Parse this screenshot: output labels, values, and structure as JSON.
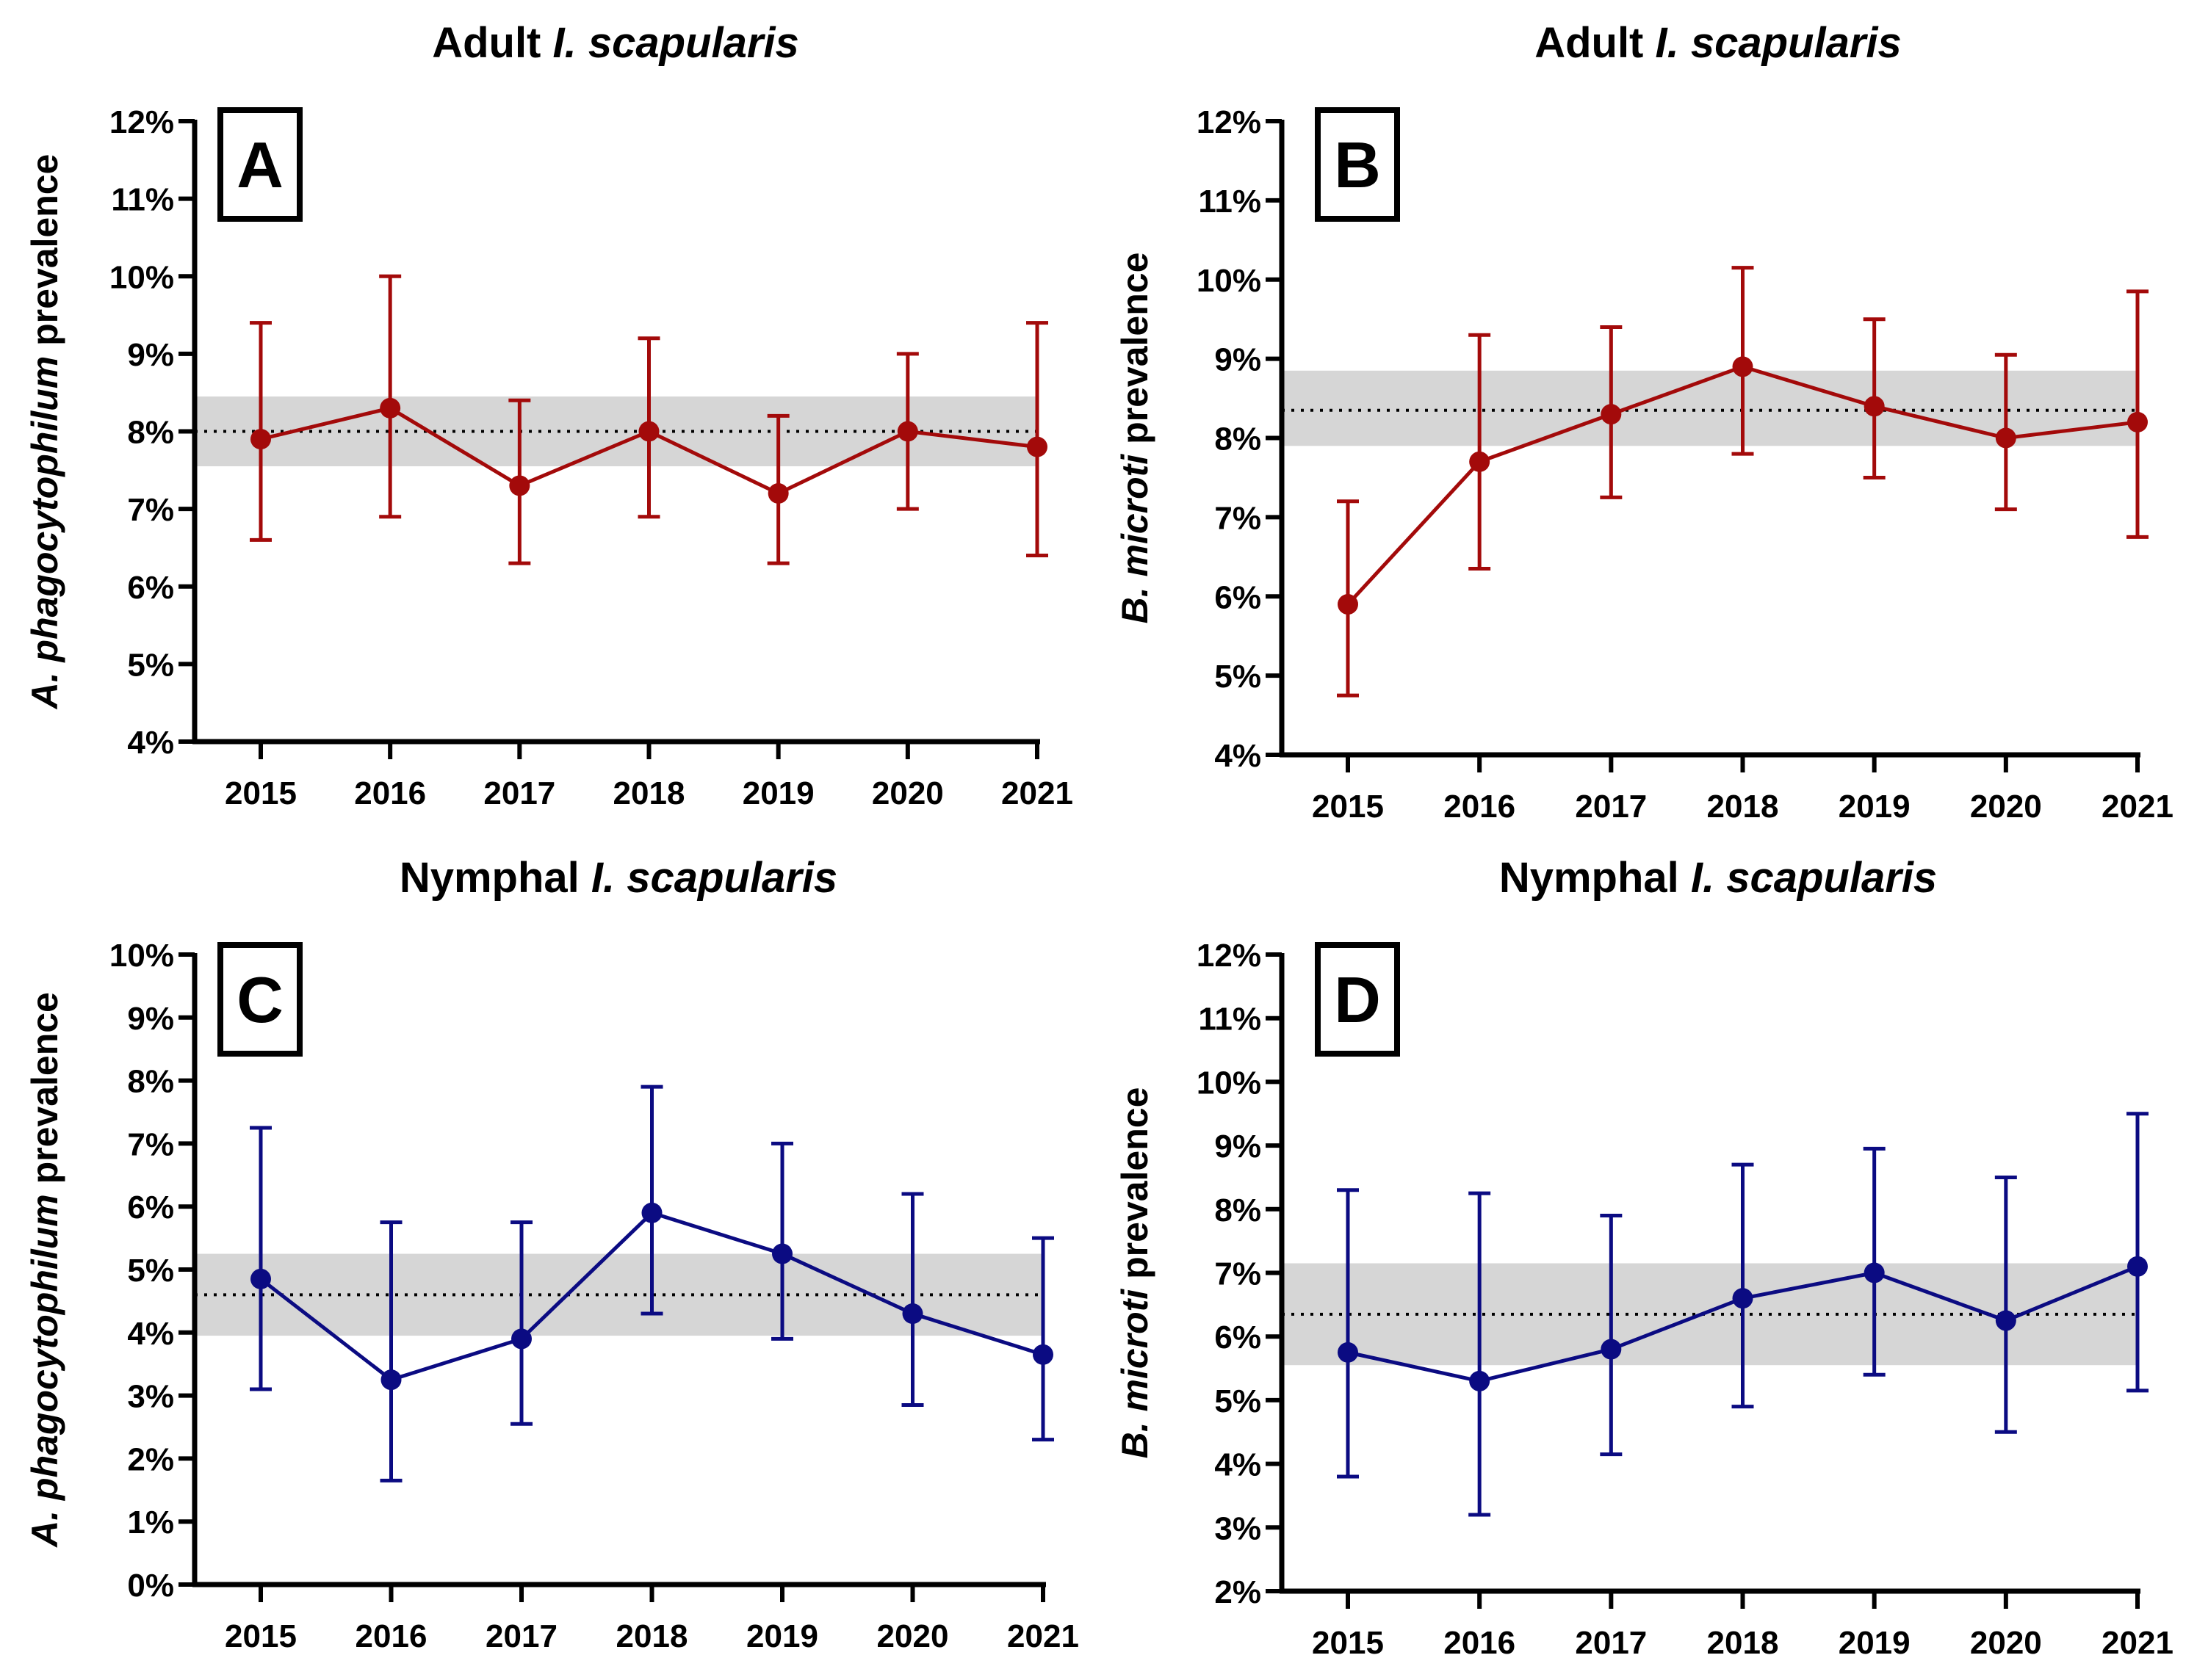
{
  "figure": {
    "palette": {
      "adult": "#a30a0a",
      "nymph": "#0b0b82",
      "band": "#d6d6d6"
    }
  },
  "chart_data": [
    {
      "panel": "A",
      "type": "line",
      "title_prefix": "Adult ",
      "title_italic": "I. scapularis",
      "ylabel_italic": "A. phagocytophilum",
      "ylabel_rest": " prevalence",
      "color": "adult",
      "categories": [
        "2015",
        "2016",
        "2017",
        "2018",
        "2019",
        "2020",
        "2021"
      ],
      "values": [
        7.9,
        8.3,
        7.3,
        8.0,
        7.2,
        8.0,
        7.8
      ],
      "ci_low": [
        6.6,
        6.9,
        6.3,
        6.9,
        6.3,
        7.0,
        6.4
      ],
      "ci_high": [
        9.4,
        10.0,
        8.4,
        9.2,
        8.2,
        9.0,
        9.4
      ],
      "reference_line": 8.0,
      "reference_band": [
        7.55,
        8.45
      ],
      "ylim": [
        4,
        12
      ],
      "yticks": [
        4,
        5,
        6,
        7,
        8,
        9,
        10,
        11,
        12
      ],
      "ytick_labels": [
        "4%",
        "5%",
        "6%",
        "7%",
        "8%",
        "9%",
        "10%",
        "11%",
        "12%"
      ]
    },
    {
      "panel": "B",
      "type": "line",
      "title_prefix": "Adult ",
      "title_italic": "I. scapularis",
      "ylabel_italic": "B. microti",
      "ylabel_rest": " prevalence",
      "color": "adult",
      "categories": [
        "2015",
        "2016",
        "2017",
        "2018",
        "2019",
        "2020",
        "2021"
      ],
      "values": [
        5.9,
        7.7,
        8.3,
        8.9,
        8.4,
        8.0,
        8.2
      ],
      "ci_low": [
        4.75,
        6.35,
        7.25,
        7.8,
        7.5,
        7.1,
        6.75
      ],
      "ci_high": [
        7.2,
        9.3,
        9.4,
        10.15,
        9.5,
        9.05,
        9.85
      ],
      "reference_line": 8.35,
      "reference_band": [
        7.9,
        8.85
      ],
      "ylim": [
        4,
        12
      ],
      "yticks": [
        4,
        5,
        6,
        7,
        8,
        9,
        10,
        11,
        12
      ],
      "ytick_labels": [
        "4%",
        "5%",
        "6%",
        "7%",
        "8%",
        "9%",
        "10%",
        "11%",
        "12%"
      ]
    },
    {
      "panel": "C",
      "type": "line",
      "title_prefix": "Nymphal ",
      "title_italic": "I. scapularis",
      "ylabel_italic": "A. phagocytophilum",
      "ylabel_rest": " prevalence",
      "color": "nymph",
      "categories": [
        "2015",
        "2016",
        "2017",
        "2018",
        "2019",
        "2020",
        "2021"
      ],
      "values": [
        4.85,
        3.25,
        3.9,
        5.9,
        5.25,
        4.3,
        3.65
      ],
      "ci_low": [
        3.1,
        1.65,
        2.55,
        4.3,
        3.9,
        2.85,
        2.3
      ],
      "ci_high": [
        7.25,
        5.75,
        5.75,
        7.9,
        7.0,
        6.2,
        5.5
      ],
      "reference_line": 4.6,
      "reference_band": [
        3.95,
        5.25
      ],
      "ylim": [
        0,
        10
      ],
      "yticks": [
        0,
        1,
        2,
        3,
        4,
        5,
        6,
        7,
        8,
        9,
        10
      ],
      "ytick_labels": [
        "0%",
        "1%",
        "2%",
        "3%",
        "4%",
        "5%",
        "6%",
        "7%",
        "8%",
        "9%",
        "10%"
      ]
    },
    {
      "panel": "D",
      "type": "line",
      "title_prefix": "Nymphal ",
      "title_italic": "I. scapularis",
      "ylabel_italic": "B. microti",
      "ylabel_rest": " prevalence",
      "color": "nymph",
      "categories": [
        "2015",
        "2016",
        "2017",
        "2018",
        "2019",
        "2020",
        "2021"
      ],
      "values": [
        5.75,
        5.3,
        5.8,
        6.6,
        7.0,
        6.25,
        7.1
      ],
      "ci_low": [
        3.8,
        3.2,
        4.15,
        4.9,
        5.4,
        4.5,
        5.15
      ],
      "ci_high": [
        8.3,
        8.25,
        7.9,
        8.7,
        8.95,
        8.5,
        9.5
      ],
      "reference_line": 6.35,
      "reference_band": [
        5.55,
        7.15
      ],
      "ylim": [
        2,
        12
      ],
      "yticks": [
        2,
        3,
        4,
        5,
        6,
        7,
        8,
        9,
        10,
        11,
        12
      ],
      "ytick_labels": [
        "2%",
        "3%",
        "4%",
        "5%",
        "6%",
        "7%",
        "8%",
        "9%",
        "10%",
        "11%",
        "12%"
      ]
    }
  ]
}
